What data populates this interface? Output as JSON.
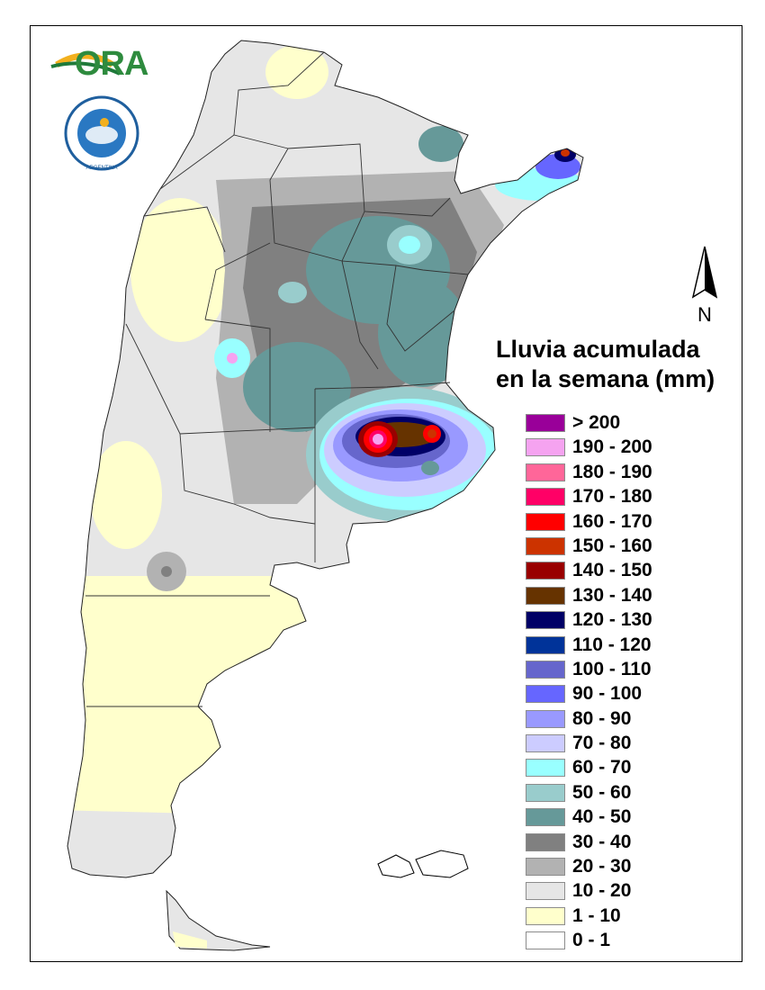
{
  "logo": {
    "brand_text": "ORA",
    "seal_text": "SERVICIO METEOROLÓGICO NACIONAL · ARGENTINA"
  },
  "compass": {
    "label": "N"
  },
  "legend": {
    "title_line1": "Lluvia acumulada",
    "title_line2": "en la semana (mm)",
    "items": [
      {
        "label": "> 200",
        "color": "#990099"
      },
      {
        "label": "190 - 200",
        "color": "#f5a3f0"
      },
      {
        "label": "180 - 190",
        "color": "#ff6699"
      },
      {
        "label": "170 - 180",
        "color": "#ff0066"
      },
      {
        "label": "160 - 170",
        "color": "#ff0000"
      },
      {
        "label": "150 - 160",
        "color": "#cc3300"
      },
      {
        "label": "140 - 150",
        "color": "#990000"
      },
      {
        "label": "130 - 140",
        "color": "#663300"
      },
      {
        "label": "120 - 130",
        "color": "#000066"
      },
      {
        "label": "110 - 120",
        "color": "#003399"
      },
      {
        "label": "100 - 110",
        "color": "#6666cc"
      },
      {
        "label": "90 - 100",
        "color": "#6666ff"
      },
      {
        "label": "80 - 90",
        "color": "#9999ff"
      },
      {
        "label": "70 - 80",
        "color": "#ccccff"
      },
      {
        "label": "60 - 70",
        "color": "#99ffff"
      },
      {
        "label": "50 - 60",
        "color": "#99cccc"
      },
      {
        "label": "40 - 50",
        "color": "#669999"
      },
      {
        "label": "30 - 40",
        "color": "#808080"
      },
      {
        "label": "20 - 30",
        "color": "#b2b2b2"
      },
      {
        "label": "10 - 20",
        "color": "#e6e6e6"
      },
      {
        "label": "1 - 10",
        "color": "#ffffcc"
      },
      {
        "label": "0 - 1",
        "color": "#ffffff"
      }
    ]
  }
}
